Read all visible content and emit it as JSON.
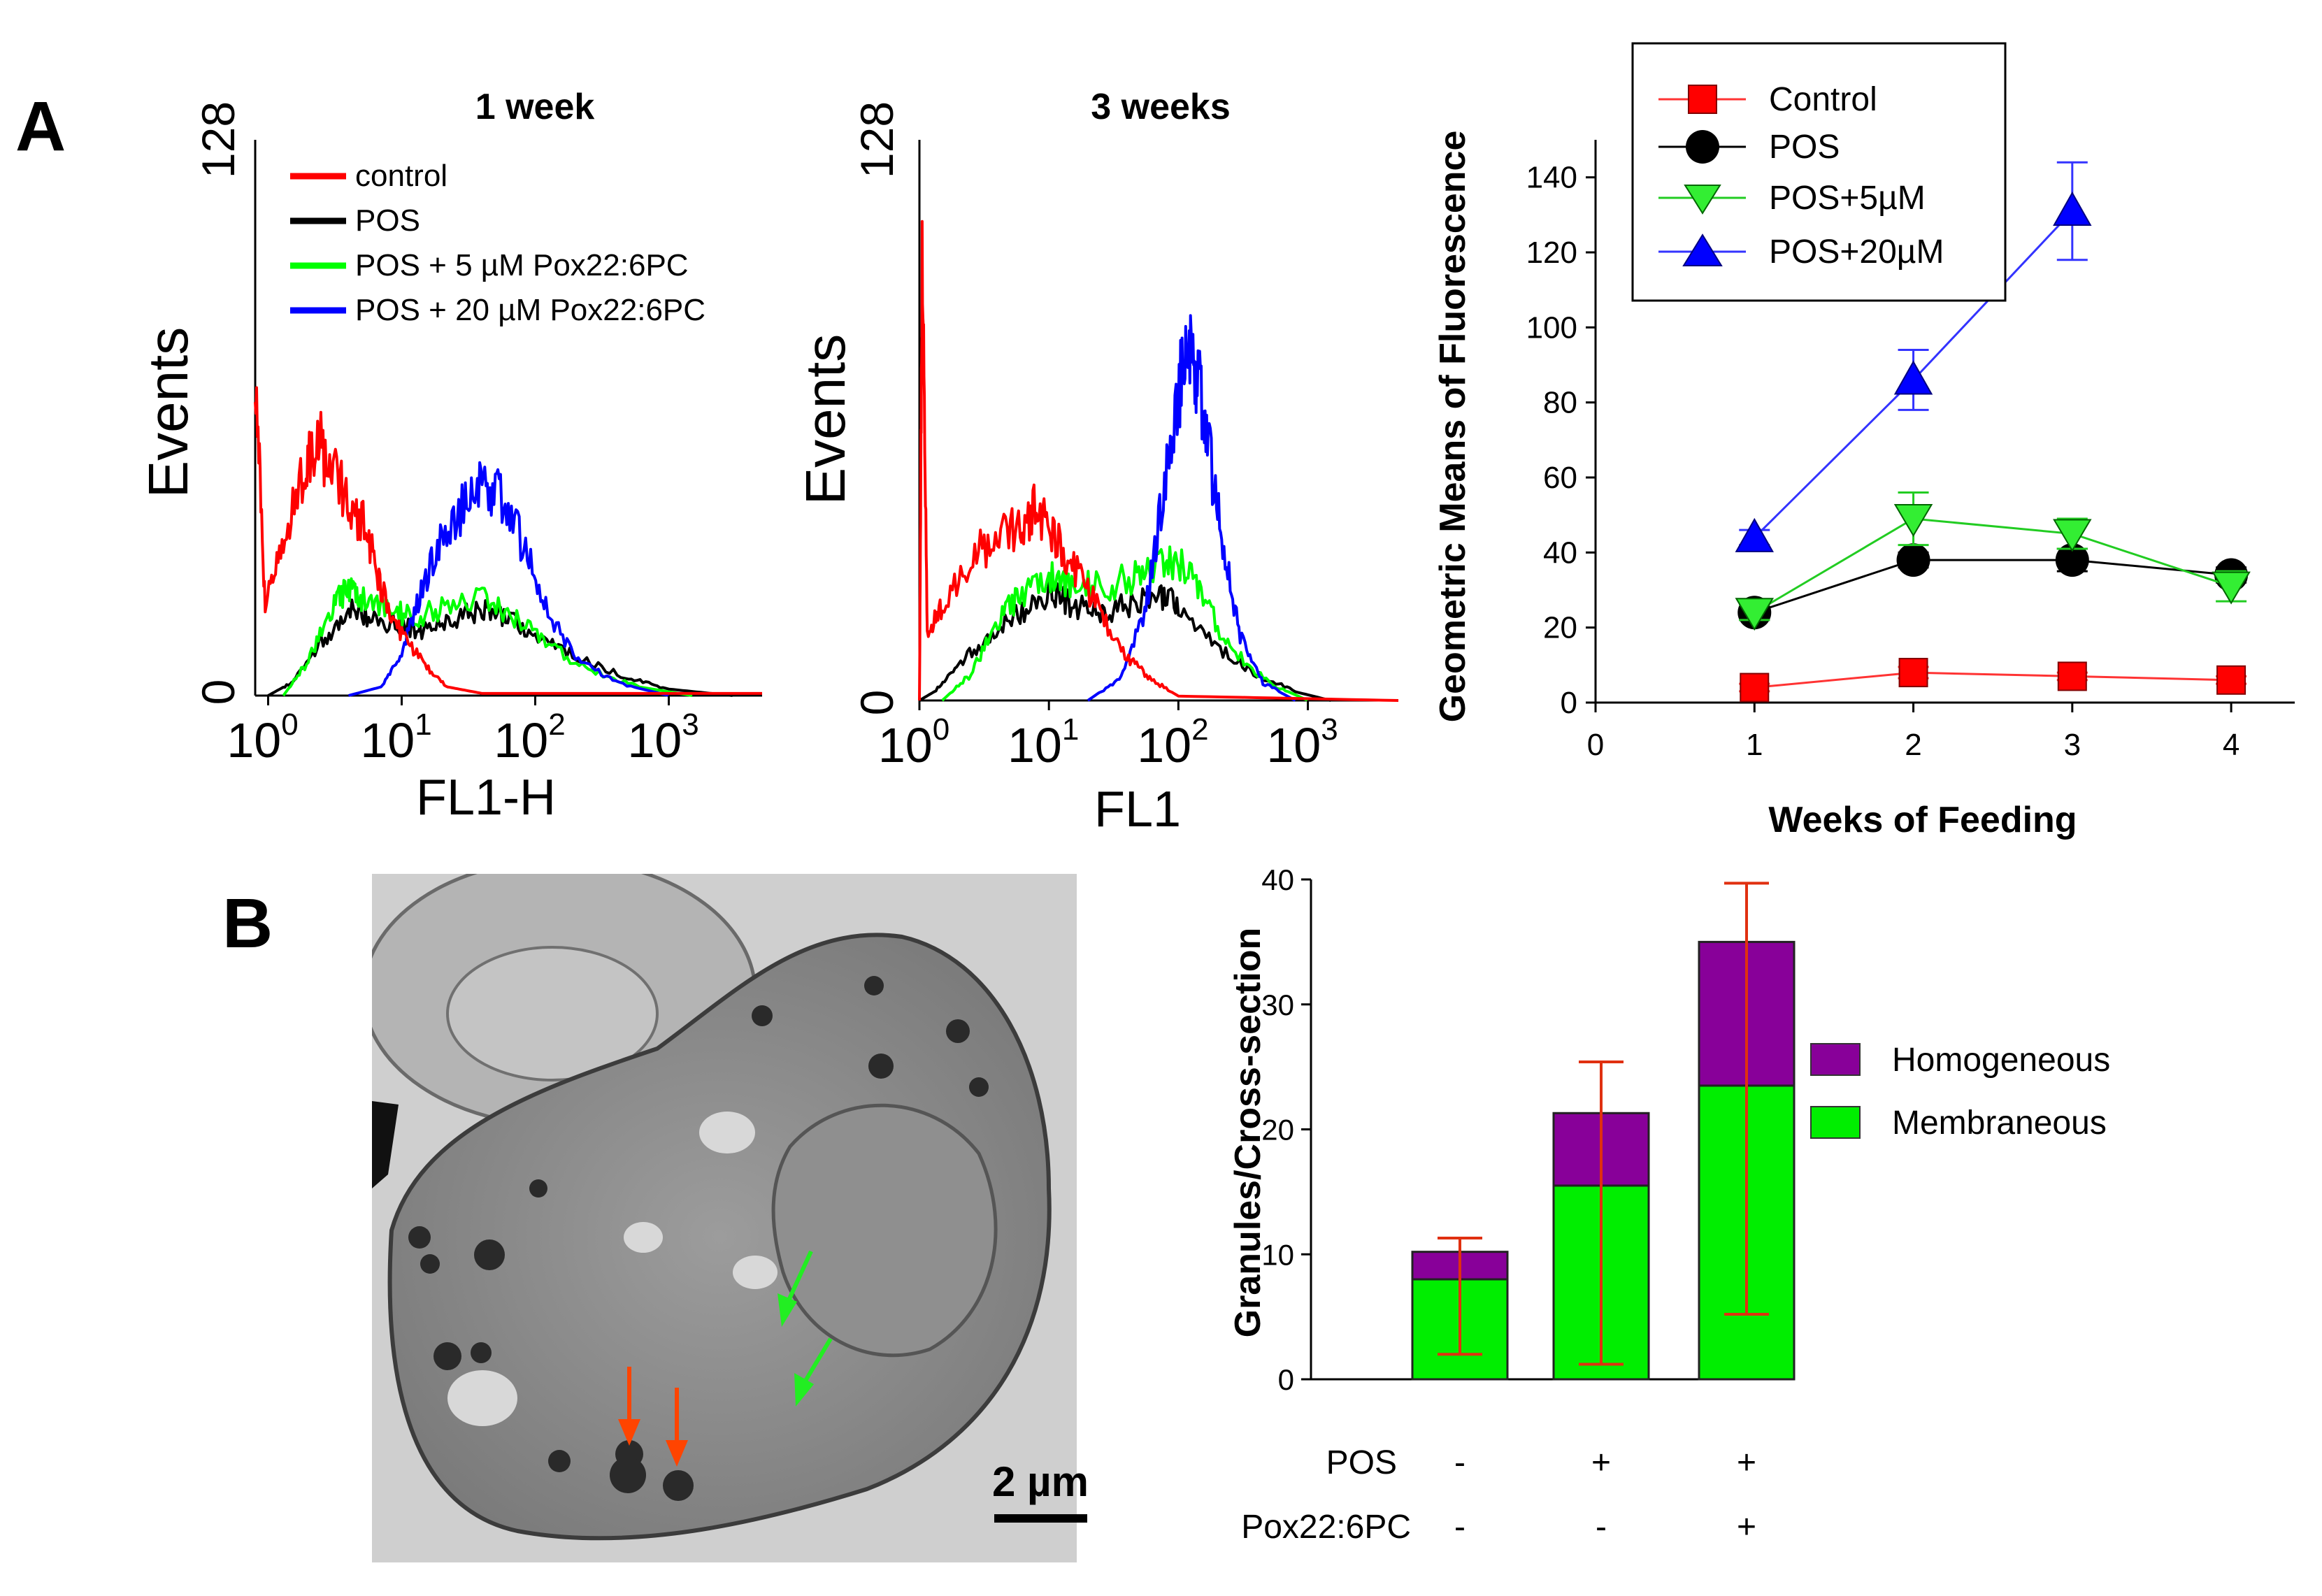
{
  "panels": {
    "a_label": "A",
    "b_label": "B"
  },
  "chart_data": [
    {
      "id": "hist_1week",
      "type": "histogram",
      "title": "1 week",
      "xlabel": "FL1-H",
      "ylabel": "Events",
      "x_scale": "log",
      "xlim": [
        0.8,
        5000
      ],
      "ylim": [
        0,
        128
      ],
      "y_ticks": [
        "0",
        "128"
      ],
      "x_ticks": [
        {
          "base": "10",
          "exp": "0"
        },
        {
          "base": "10",
          "exp": "1"
        },
        {
          "base": "10",
          "exp": "2"
        },
        {
          "base": "10",
          "exp": "3"
        }
      ],
      "legend": [
        "control",
        "POS",
        "POS + 5 µM Pox22:6PC",
        "POS + 20 µM Pox22:6PC"
      ],
      "series": [
        {
          "name": "control",
          "color": "#ff0000",
          "curve": [
            [
              0.8,
              77
            ],
            [
              0.95,
              20
            ],
            [
              1.3,
              35
            ],
            [
              1.9,
              54
            ],
            [
              2.3,
              60
            ],
            [
              3,
              52
            ],
            [
              4,
              45
            ],
            [
              5.5,
              38
            ],
            [
              7,
              25
            ],
            [
              10,
              14
            ],
            [
              15,
              7
            ],
            [
              22,
              2
            ],
            [
              40,
              0.5
            ],
            [
              5000,
              0.5
            ]
          ]
        },
        {
          "name": "POS",
          "color": "#000000",
          "curve": [
            [
              1,
              0
            ],
            [
              1.5,
              3
            ],
            [
              2.5,
              12
            ],
            [
              4,
              20
            ],
            [
              6,
              18
            ],
            [
              10,
              16
            ],
            [
              15,
              15
            ],
            [
              25,
              18
            ],
            [
              40,
              20
            ],
            [
              60,
              18
            ],
            [
              100,
              14
            ],
            [
              200,
              9
            ],
            [
              500,
              4
            ],
            [
              1000,
              1.5
            ],
            [
              3000,
              0
            ]
          ]
        },
        {
          "name": "POS + 5 µM Pox22:6PC",
          "color": "#00ff00",
          "curve": [
            [
              1.3,
              0
            ],
            [
              2,
              8
            ],
            [
              3,
              20
            ],
            [
              4,
              25
            ],
            [
              5,
              22
            ],
            [
              8,
              20
            ],
            [
              12,
              18
            ],
            [
              20,
              20
            ],
            [
              40,
              22
            ],
            [
              70,
              18
            ],
            [
              120,
              12
            ],
            [
              250,
              6
            ],
            [
              600,
              2
            ],
            [
              1500,
              0
            ]
          ]
        },
        {
          "name": "POS + 20 µM Pox22:6PC",
          "color": "#0000ff",
          "curve": [
            [
              4,
              0
            ],
            [
              7,
              2
            ],
            [
              10,
              10
            ],
            [
              14,
              24
            ],
            [
              20,
              36
            ],
            [
              30,
              44
            ],
            [
              40,
              50
            ],
            [
              55,
              46
            ],
            [
              80,
              35
            ],
            [
              120,
              20
            ],
            [
              200,
              9
            ],
            [
              400,
              3
            ],
            [
              1000,
              0
            ]
          ]
        }
      ]
    },
    {
      "id": "hist_3weeks",
      "type": "histogram",
      "title": "3 weeks",
      "xlabel": "FL1",
      "ylabel": "Events",
      "x_scale": "log",
      "xlim": [
        1,
        5000
      ],
      "ylim": [
        0,
        128
      ],
      "y_ticks": [
        "0",
        "128"
      ],
      "x_ticks": [
        {
          "base": "10",
          "exp": "0"
        },
        {
          "base": "10",
          "exp": "1"
        },
        {
          "base": "10",
          "exp": "2"
        },
        {
          "base": "10",
          "exp": "3"
        }
      ],
      "series": [
        {
          "name": "control",
          "color": "#ff0000",
          "curve": [
            [
              1,
              0
            ],
            [
              1.05,
              100
            ],
            [
              1.15,
              15
            ],
            [
              1.5,
              22
            ],
            [
              2.5,
              33
            ],
            [
              4,
              37
            ],
            [
              6,
              40
            ],
            [
              8,
              44
            ],
            [
              11,
              38
            ],
            [
              16,
              30
            ],
            [
              25,
              20
            ],
            [
              40,
              10
            ],
            [
              60,
              5
            ],
            [
              100,
              1
            ],
            [
              5000,
              0
            ]
          ]
        },
        {
          "name": "POS",
          "color": "#000000",
          "curve": [
            [
              1,
              0
            ],
            [
              1.3,
              2
            ],
            [
              2,
              8
            ],
            [
              3.5,
              15
            ],
            [
              6,
              20
            ],
            [
              10,
              25
            ],
            [
              15,
              22
            ],
            [
              25,
              20
            ],
            [
              40,
              22
            ],
            [
              70,
              24
            ],
            [
              100,
              22
            ],
            [
              200,
              12
            ],
            [
              400,
              6
            ],
            [
              800,
              2
            ],
            [
              1500,
              0
            ]
          ]
        },
        {
          "name": "POS + 5 µM Pox22:6PC",
          "color": "#00ff00",
          "curve": [
            [
              1.5,
              0
            ],
            [
              2.5,
              6
            ],
            [
              4,
              18
            ],
            [
              6,
              24
            ],
            [
              10,
              28
            ],
            [
              15,
              26
            ],
            [
              25,
              26
            ],
            [
              45,
              28
            ],
            [
              70,
              30
            ],
            [
              100,
              32
            ],
            [
              150,
              24
            ],
            [
              250,
              12
            ],
            [
              500,
              4
            ],
            [
              1000,
              0
            ]
          ]
        },
        {
          "name": "POS + 20 µM Pox22:6PC",
          "color": "#0000ff",
          "curve": [
            [
              20,
              0
            ],
            [
              35,
              5
            ],
            [
              55,
              20
            ],
            [
              75,
              45
            ],
            [
              100,
              70
            ],
            [
              120,
              82
            ],
            [
              140,
              75
            ],
            [
              170,
              58
            ],
            [
              220,
              35
            ],
            [
              300,
              15
            ],
            [
              450,
              4
            ],
            [
              800,
              0
            ]
          ]
        }
      ]
    },
    {
      "id": "line_gmf",
      "type": "line",
      "xlabel": "Weeks of Feeding",
      "ylabel": "Geometric Means of Fluorescence",
      "xlim": [
        0,
        4.4
      ],
      "ylim": [
        0,
        150
      ],
      "x_ticks": [
        "0",
        "1",
        "2",
        "3",
        "4"
      ],
      "y_ticks": [
        "0",
        "20",
        "40",
        "60",
        "80",
        "100",
        "120",
        "140"
      ],
      "legend": [
        "Control",
        "POS",
        "POS+5µM",
        "POS+20µM"
      ],
      "series": [
        {
          "name": "Control",
          "color": "#ff3333",
          "marker": "square",
          "x": [
            1,
            2,
            3,
            4
          ],
          "y": [
            4,
            8,
            7,
            6
          ],
          "err": [
            1,
            1.5,
            1,
            1
          ]
        },
        {
          "name": "POS",
          "color": "#000000",
          "marker": "circle",
          "x": [
            1,
            2,
            3,
            4
          ],
          "y": [
            24,
            38,
            38,
            34
          ],
          "err": [
            2,
            2,
            3,
            2
          ]
        },
        {
          "name": "POS+5µM",
          "color": "#22cc22",
          "marker": "triangle-down",
          "x": [
            1,
            2,
            3,
            4
          ],
          "y": [
            24,
            49,
            45,
            31
          ],
          "err": [
            2,
            7,
            4,
            4
          ]
        },
        {
          "name": "POS+20µM",
          "color": "#3333ff",
          "marker": "triangle-up",
          "x": [
            1,
            2,
            3
          ],
          "y": [
            44,
            86,
            131
          ],
          "err": [
            2,
            8,
            13
          ]
        }
      ]
    },
    {
      "id": "bar_granules",
      "type": "bar",
      "ylabel": "Granules/Cross-section",
      "ylim": [
        0,
        40
      ],
      "y_ticks": [
        "0",
        "10",
        "20",
        "30",
        "40"
      ],
      "row_labels": [
        "POS",
        "Pox22:6PC"
      ],
      "conditions": [
        {
          "pos": "-",
          "pox": "-"
        },
        {
          "pos": "+",
          "pox": "-"
        },
        {
          "pos": "+",
          "pox": "+"
        }
      ],
      "series": [
        {
          "name": "Membraneous",
          "color": "#00ee00",
          "values": [
            8,
            15.5,
            23.5
          ],
          "err_low": [
            2,
            1.2,
            5.2
          ]
        },
        {
          "name": "Homogeneous",
          "color": "#880099",
          "values": [
            2.2,
            5.8,
            11.5
          ],
          "err_high": [
            11.3,
            25.4,
            39.7
          ]
        }
      ],
      "legend": [
        "Homogeneous",
        "Membraneous"
      ]
    }
  ],
  "micrograph": {
    "scale_bar": "2 µm"
  }
}
